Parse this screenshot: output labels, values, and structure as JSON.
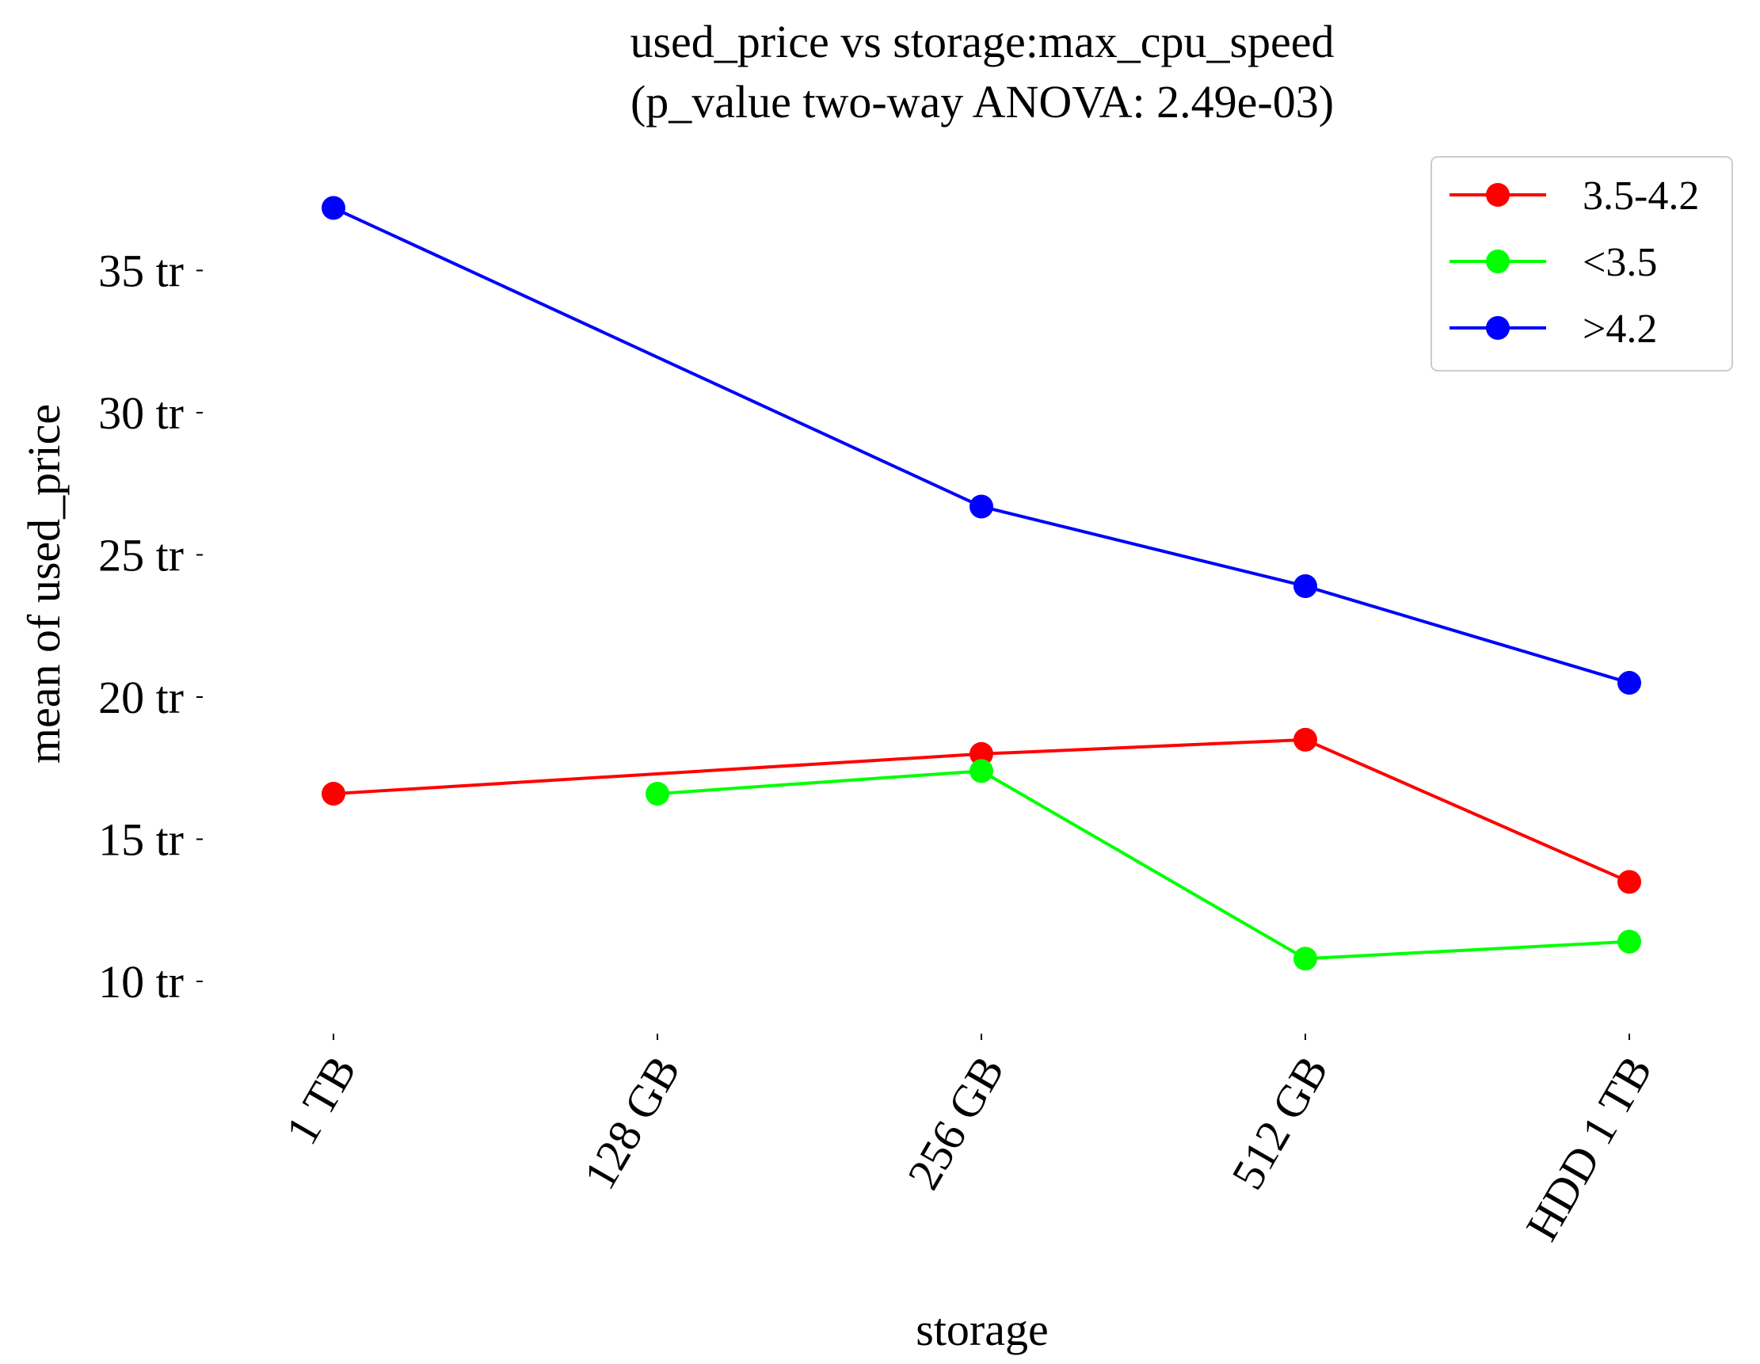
{
  "chart_data": {
    "type": "line",
    "title_line1": "used_price vs storage:max_cpu_speed",
    "title_line2": "(p_value two-way ANOVA: 2.49e-03)",
    "xlabel": "storage",
    "ylabel": "mean of used_price",
    "categories": [
      "1 TB",
      "128 GB",
      "256 GB",
      "512 GB",
      "HDD 1 TB"
    ],
    "ytick_values": [
      10,
      15,
      20,
      25,
      30,
      35
    ],
    "ytick_labels": [
      "10 tr",
      "15 tr",
      "20 tr",
      "25 tr",
      "30 tr",
      "35 tr"
    ],
    "ylim": [
      8.5,
      38.5
    ],
    "grid": false,
    "legend_position": "top-right",
    "series": [
      {
        "name": "3.5-4.2",
        "color": "#ff0000",
        "values": [
          16.6,
          null,
          18.0,
          18.5,
          13.5
        ]
      },
      {
        "name": "<3.5",
        "color": "#00ff00",
        "values": [
          null,
          16.6,
          17.4,
          10.8,
          11.4
        ]
      },
      {
        "name": ">4.2",
        "color": "#0000ff",
        "values": [
          37.2,
          null,
          26.7,
          23.9,
          20.5
        ]
      }
    ]
  }
}
